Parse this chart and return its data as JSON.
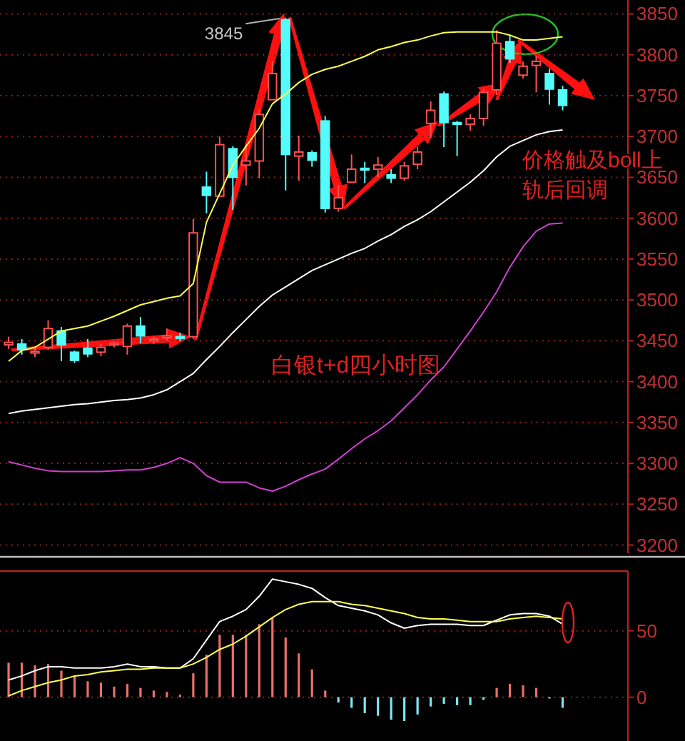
{
  "chart_data": [
    {
      "type": "candlestick",
      "categories": [
        null,
        null,
        null,
        null,
        null,
        null,
        null,
        null,
        null,
        null,
        null,
        null,
        null,
        null,
        null,
        null,
        null,
        null,
        null,
        null,
        null,
        null,
        null,
        null,
        null,
        null,
        null,
        null,
        null,
        null,
        null,
        null,
        null,
        null,
        null,
        null,
        null,
        null,
        null,
        null,
        null,
        null,
        null
      ],
      "ohlc": [
        [
          3445,
          3455,
          3440,
          3448
        ],
        [
          3446,
          3452,
          3433,
          3439
        ],
        [
          3435,
          3441,
          3430,
          3437
        ],
        [
          3442,
          3475,
          3439,
          3465
        ],
        [
          3462,
          3467,
          3425,
          3445
        ],
        [
          3436,
          3438,
          3423,
          3426
        ],
        [
          3441,
          3452,
          3430,
          3434
        ],
        [
          3436,
          3446,
          3431,
          3442
        ],
        [
          3445,
          3449,
          3442,
          3447
        ],
        [
          3443,
          3471,
          3433,
          3468
        ],
        [
          3468,
          3479,
          3447,
          3456
        ],
        [
          3450,
          3455,
          3446,
          3452
        ],
        [
          3454,
          3465,
          3450,
          3456
        ],
        [
          3455,
          3460,
          3450,
          3453
        ],
        [
          3455,
          3599,
          3452,
          3582
        ],
        [
          3638,
          3657,
          3606,
          3628
        ],
        [
          3627,
          3700,
          3627,
          3690
        ],
        [
          3685,
          3688,
          3610,
          3650
        ],
        [
          3665,
          3690,
          3640,
          3670
        ],
        [
          3670,
          3733,
          3649,
          3727
        ],
        [
          3745,
          3792,
          3745,
          3777
        ],
        [
          3843,
          3845,
          3634,
          3678
        ],
        [
          3676,
          3701,
          3646,
          3681
        ],
        [
          3680,
          3683,
          3663,
          3671
        ],
        [
          3719,
          3725,
          3607,
          3612
        ],
        [
          3612,
          3640,
          3608,
          3625
        ],
        [
          3644,
          3678,
          3643,
          3660
        ],
        [
          3661,
          3669,
          3643,
          3659
        ],
        [
          3660,
          3675,
          3650,
          3665
        ],
        [
          3653,
          3660,
          3643,
          3649
        ],
        [
          3649,
          3669,
          3646,
          3664
        ],
        [
          3666,
          3687,
          3660,
          3681
        ],
        [
          3716,
          3743,
          3698,
          3732
        ],
        [
          3752,
          3755,
          3687,
          3717
        ],
        [
          3717,
          3719,
          3676,
          3715
        ],
        [
          3715,
          3727,
          3707,
          3722
        ],
        [
          3722,
          3758,
          3713,
          3754
        ],
        [
          3757,
          3830,
          3751,
          3814
        ],
        [
          3816,
          3823,
          3790,
          3795
        ],
        [
          3775,
          3792,
          3771,
          3786
        ],
        [
          3787,
          3799,
          3754,
          3792
        ],
        [
          3777,
          3783,
          3739,
          3758
        ],
        [
          3757,
          3762,
          3732,
          3738
        ]
      ],
      "colors": [
        "#ff5050",
        "#54fcfc",
        "#ff5050",
        "#ff5050",
        "#54fcfc",
        "#54fcfc",
        "#54fcfc",
        "#ff5050",
        "#ff5050",
        "#ff5050",
        "#54fcfc",
        "#ff5050",
        "#ff5050",
        "#54fcfc",
        "#ff5050",
        "#54fcfc",
        "#ff5050",
        "#54fcfc",
        "#ff5050",
        "#ff5050",
        "#ff5050",
        "#54fcfc",
        "#ff5050",
        "#54fcfc",
        "#54fcfc",
        "#ff5050",
        "#ff5050",
        "#54fcfc",
        "#ff5050",
        "#54fcfc",
        "#ff5050",
        "#ff5050",
        "#ff5050",
        "#54fcfc",
        "#54fcfc",
        "#ff5050",
        "#ff5050",
        "#ff5050",
        "#54fcfc",
        "#ff5050",
        "#ff5050",
        "#54fcfc",
        "#54fcfc"
      ],
      "series": [
        {
          "type": "line",
          "color": "#ffff50",
          "values": [
            3425,
            3438,
            3442,
            3452,
            3462,
            3465,
            3468,
            3474,
            3480,
            3487,
            3494,
            3498,
            3502,
            3505,
            3520,
            3595,
            3630,
            3665,
            3688,
            3710,
            3740,
            3752,
            3766,
            3776,
            3782,
            3786,
            3792,
            3798,
            3806,
            3810,
            3815,
            3818,
            3823,
            3827,
            3828,
            3828,
            3828,
            3828,
            3824,
            3818,
            3818,
            3820,
            3822
          ]
        },
        {
          "type": "line",
          "color": "#ffffff",
          "values": [
            3361,
            3364,
            3366,
            3368,
            3370,
            3372,
            3373,
            3375,
            3377,
            3378,
            3380,
            3384,
            3390,
            3400,
            3410,
            3427,
            3443,
            3460,
            3476,
            3492,
            3506,
            3516,
            3526,
            3536,
            3543,
            3550,
            3557,
            3563,
            3572,
            3580,
            3590,
            3598,
            3608,
            3620,
            3632,
            3644,
            3658,
            3675,
            3688,
            3695,
            3702,
            3706,
            3708
          ]
        },
        {
          "type": "line",
          "color": "#d040d0",
          "values": [
            3302,
            3298,
            3294,
            3291,
            3290,
            3290,
            3290,
            3290,
            3291,
            3292,
            3292,
            3295,
            3300,
            3307,
            3300,
            3285,
            3277,
            3277,
            3277,
            3270,
            3266,
            3272,
            3280,
            3287,
            3293,
            3305,
            3318,
            3330,
            3340,
            3352,
            3368,
            3384,
            3402,
            3418,
            3440,
            3462,
            3485,
            3510,
            3540,
            3565,
            3584,
            3593,
            3594
          ]
        }
      ],
      "ylim": [
        3190,
        3867
      ],
      "yticks": [
        3200,
        3250,
        3300,
        3350,
        3400,
        3450,
        3500,
        3550,
        3600,
        3650,
        3700,
        3750,
        3800,
        3850
      ],
      "grid": "y",
      "tick_labels": "y",
      "annotations": [
        "3845",
        "白银t+d四小时图",
        "价格触及boll上轨后回调"
      ]
    },
    {
      "type": "bar",
      "categories": [
        null,
        null,
        null,
        null,
        null,
        null,
        null,
        null,
        null,
        null,
        null,
        null,
        null,
        null,
        null,
        null,
        null,
        null,
        null,
        null,
        null,
        null,
        null,
        null,
        null,
        null,
        null,
        null,
        null,
        null,
        null,
        null,
        null,
        null,
        null,
        null,
        null,
        null,
        null,
        null,
        null,
        null,
        null
      ],
      "series": [
        {
          "type": "bar",
          "colors": [
            "#e87068",
            "#e87068",
            "#e87068",
            "#e87068",
            "#e87068",
            "#e87068",
            "#e87068",
            "#e87068",
            "#e87068",
            "#e87068",
            "#e87068",
            "#e87068",
            "#e87068",
            "#e87068",
            "#e87068",
            "#e87068",
            "#e87068",
            "#e87068",
            "#e87068",
            "#e87068",
            "#e87068",
            "#e87068",
            "#e87068",
            "#e87068",
            "#e87068",
            "#7fe5f0",
            "#7fe5f0",
            "#7fe5f0",
            "#7fe5f0",
            "#7fe5f0",
            "#7fe5f0",
            "#7fe5f0",
            "#7fe5f0",
            "#7fe5f0",
            "#7fe5f0",
            "#7fe5f0",
            "#7fe5f0",
            "#e87068",
            "#e87068",
            "#e87068",
            "#e87068",
            "#7fe5f0",
            "#7fe5f0"
          ],
          "values": [
            26,
            26,
            24,
            25,
            20,
            16,
            12,
            11,
            8,
            10,
            7,
            5,
            4,
            2,
            18,
            32,
            47,
            47,
            47,
            55,
            60,
            45,
            33,
            21,
            5,
            -4,
            -8,
            -12,
            -14,
            -17,
            -18,
            -13,
            -7,
            -5,
            -6,
            -6,
            -2,
            7,
            10,
            9,
            7,
            -1,
            -8
          ]
        },
        {
          "type": "line",
          "color": "#ffffff",
          "values": [
            13,
            16,
            20,
            23,
            23,
            22,
            22,
            22,
            23,
            25,
            23,
            23,
            22,
            22,
            29,
            43,
            57,
            61,
            66,
            76,
            89,
            87,
            85,
            82,
            75,
            69,
            67,
            65,
            62,
            56,
            52,
            54,
            55,
            55,
            55,
            54,
            54,
            58,
            62,
            63,
            63,
            61,
            55
          ]
        },
        {
          "type": "line",
          "color": "#ffff50",
          "values": [
            1,
            5,
            8,
            11,
            13,
            16,
            17,
            19,
            20,
            21,
            21,
            22,
            22,
            22,
            25,
            30,
            36,
            40,
            46,
            53,
            60,
            66,
            70,
            72,
            72,
            72,
            70,
            69,
            67,
            65,
            63,
            60,
            59,
            59,
            58,
            57,
            57,
            57,
            59,
            60,
            61,
            60,
            59
          ]
        }
      ],
      "ylim": [
        -33,
        95
      ],
      "yticks": [
        0,
        50
      ],
      "grid": "y",
      "tick_labels": "y"
    }
  ]
}
